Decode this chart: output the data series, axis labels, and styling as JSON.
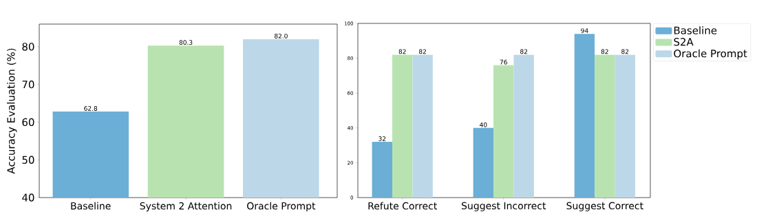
{
  "chart_data": [
    {
      "type": "bar",
      "ylabel": "Accuracy Evaluation (%)",
      "categories": [
        "Baseline",
        "System 2 Attention",
        "Oracle Prompt"
      ],
      "values": [
        62.8,
        80.3,
        82.0
      ],
      "colors": [
        "#6baed6",
        "#b8e3b0",
        "#bcd7e8"
      ],
      "value_labels": [
        "62.8",
        "80.3",
        "82.0"
      ],
      "ylim": [
        40,
        86
      ],
      "yticks": [
        40,
        50,
        60,
        70,
        80
      ]
    },
    {
      "type": "bar",
      "categories": [
        "Refute Correct",
        "Suggest Incorrect",
        "Suggest Correct"
      ],
      "series": [
        {
          "name": "Baseline",
          "color": "#6baed6",
          "values": [
            32,
            40,
            94
          ],
          "value_labels": [
            "32",
            "40",
            "94"
          ]
        },
        {
          "name": "S2A",
          "color": "#b8e3b0",
          "values": [
            82,
            76,
            82
          ],
          "value_labels": [
            "82",
            "76",
            "82"
          ]
        },
        {
          "name": "Oracle Prompt",
          "color": "#bcd7e8",
          "values": [
            82,
            82,
            82
          ],
          "value_labels": [
            "82",
            "82",
            "82"
          ]
        }
      ],
      "ylim": [
        0,
        100
      ],
      "yticks": [
        0,
        20,
        40,
        60,
        80,
        100
      ],
      "legend": "right"
    }
  ]
}
